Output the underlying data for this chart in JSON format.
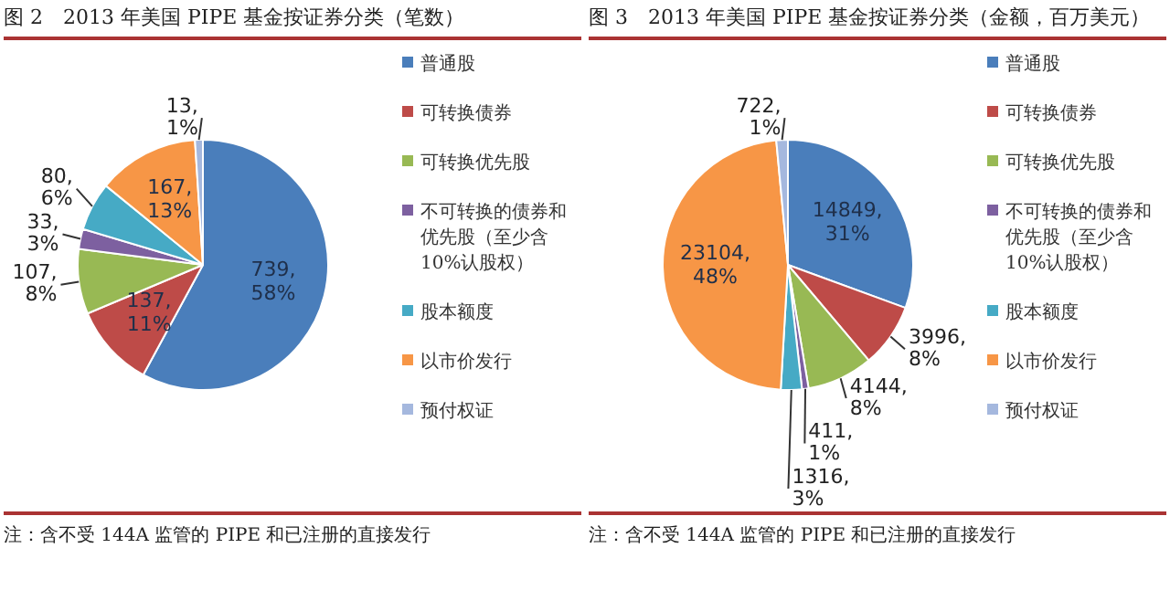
{
  "chart_data": [
    {
      "type": "pie",
      "title": "图 2　2013 年美国 PIPE 基金按证券分类（笔数）",
      "categories": [
        "普通股",
        "可转换债券",
        "可转换优先股",
        "不可转换的债券和优先股（至少含10%认股权）",
        "股本额度",
        "以市价发行",
        "预付权证"
      ],
      "values": [
        739,
        137,
        107,
        33,
        80,
        167,
        13
      ],
      "value_labels": [
        "739, 58%",
        "137, 11%",
        "107, 8%",
        "33, 3%",
        "80, 6%",
        "167, 13%",
        "13, 1%"
      ],
      "colors": [
        "#4a7ebb",
        "#be4b48",
        "#98b954",
        "#7d60a0",
        "#46aac5",
        "#f79646",
        "#a5b8de"
      ],
      "legend": "right",
      "annotations": [
        "注：含不受 144A 监管的 PIPE 和已注册的直接发行"
      ]
    },
    {
      "type": "pie",
      "title": "图 3　2013 年美国 PIPE 基金按证券分类（金额，百万美元）",
      "categories": [
        "普通股",
        "可转换债券",
        "可转换优先股",
        "不可转换的债券和优先股（至少含10%认股权）",
        "股本额度",
        "以市价发行",
        "预付权证"
      ],
      "values": [
        14849,
        3996,
        4144,
        411,
        1316,
        23104,
        722
      ],
      "value_labels": [
        "14849, 31%",
        "3996, 8%",
        "4144, 8%",
        "411, 1%",
        "1316, 3%",
        "23104, 48%",
        "722, 1%"
      ],
      "colors": [
        "#4a7ebb",
        "#be4b48",
        "#98b954",
        "#7d60a0",
        "#46aac5",
        "#f79646",
        "#a5b8de"
      ],
      "legend": "right",
      "annotations": [
        "注：含不受 144A 监管的 PIPE 和已注册的直接发行"
      ]
    }
  ]
}
